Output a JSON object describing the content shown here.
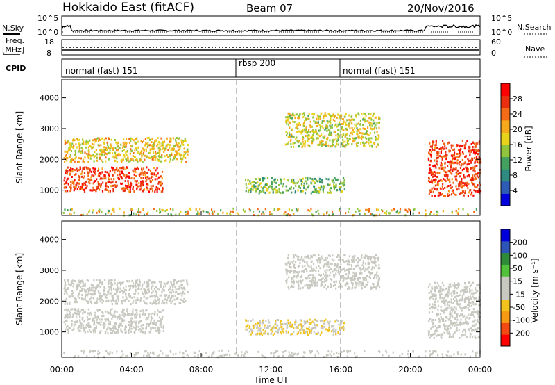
{
  "header": {
    "station": "Hokkaido East (fitACF)",
    "beam": "Beam 07",
    "date": "20/Nov/2016"
  },
  "noise_panel": {
    "left_label": "N.Sky",
    "right_label": "N.Search",
    "ytick_top": "10^5",
    "ytick_bottom": "10^0"
  },
  "freq_panel": {
    "left_label_line1": "Freq.",
    "left_label_line2": "[MHz]",
    "left_ticks": [
      "18",
      "8"
    ],
    "right_label": "Nave",
    "right_ticks": [
      "60",
      "0"
    ]
  },
  "cpid_panel": {
    "label": "CPID",
    "modes": [
      {
        "name": "normal (fast) 151",
        "start_hour": 0,
        "end_hour": 10
      },
      {
        "name": "rbsp 200",
        "start_hour": 10,
        "end_hour": 16
      },
      {
        "name": "normal (fast) 151",
        "start_hour": 16,
        "end_hour": 24
      }
    ]
  },
  "x_axis": {
    "label": "Time UT",
    "ticks": [
      "00:00",
      "04:00",
      "08:00",
      "12:00",
      "16:00",
      "20:00",
      "00:00"
    ]
  },
  "chart_data": [
    {
      "type": "heatmap",
      "title": "",
      "ylabel": "Slant Range [km]",
      "xlabel": "",
      "x_range_hours": [
        0,
        24
      ],
      "ylim": [
        180,
        4600
      ],
      "yticks": [
        1000,
        2000,
        3000,
        4000
      ],
      "colorbar": {
        "label": "Power [dB]",
        "ticks": [
          "28",
          "24",
          "20",
          "16",
          "12",
          "8",
          "4"
        ],
        "colors": [
          "#0000dd",
          "#2d5bb5",
          "#2f8a80",
          "#44a060",
          "#8fc43c",
          "#e7d21c",
          "#f6a91c",
          "#f36a17",
          "#ea2f10",
          "#ff0000"
        ]
      },
      "regions": [
        {
          "name": "dense near-range 00-06 UT",
          "t0": 0.1,
          "t1": 5.8,
          "r0": 950,
          "r1": 1750,
          "value_db": 26
        },
        {
          "name": "scatter 00-07 UT",
          "t0": 0.1,
          "t1": 7.2,
          "r0": 1900,
          "r1": 2700,
          "value_db": 18
        },
        {
          "name": "scatter 13-18 UT",
          "t0": 12.8,
          "t1": 18.2,
          "r0": 2400,
          "r1": 3500,
          "value_db": 16
        },
        {
          "name": "low band 11-16 UT",
          "t0": 10.5,
          "t1": 16.2,
          "r0": 900,
          "r1": 1400,
          "value_db": 12
        },
        {
          "name": "dense near-range 21-24 UT",
          "t0": 21.0,
          "t1": 24.0,
          "r0": 800,
          "r1": 2600,
          "value_db": 26
        }
      ]
    },
    {
      "type": "heatmap",
      "title": "",
      "ylabel": "Slant Range [km]",
      "xlabel": "Time UT",
      "x_range_hours": [
        0,
        24
      ],
      "ylim": [
        180,
        4600
      ],
      "yticks": [
        1000,
        2000,
        3000,
        4000
      ],
      "colorbar": {
        "label": "Velocity [m s⁻¹]",
        "ticks": [
          "200",
          "100",
          "50",
          "15",
          "-15",
          "-50",
          "-100",
          "-200"
        ],
        "colors": [
          "#ff0000",
          "#f24a12",
          "#f69a14",
          "#f2c21d",
          "#c8c8c0",
          "#c8c8c0",
          "#52c23a",
          "#2f8a3a",
          "#2d54b7",
          "#0000dd"
        ]
      },
      "regions": [
        {
          "name": "near-zero 00-06 UT",
          "t0": 0.1,
          "t1": 5.8,
          "r0": 950,
          "r1": 1750,
          "value_ms": 0
        },
        {
          "name": "near-zero 00-07 UT",
          "t0": 0.1,
          "t1": 7.2,
          "r0": 1900,
          "r1": 2700,
          "value_ms": 0
        },
        {
          "name": "near-zero 13-18 UT",
          "t0": 12.8,
          "t1": 18.2,
          "r0": 2400,
          "r1": 3500,
          "value_ms": 0
        },
        {
          "name": "negative 11-16 UT",
          "t0": 10.5,
          "t1": 16.2,
          "r0": 900,
          "r1": 1400,
          "value_ms": -40
        },
        {
          "name": "near-zero 21-24 UT",
          "t0": 21.0,
          "t1": 24.0,
          "r0": 800,
          "r1": 2600,
          "value_ms": 0
        }
      ]
    }
  ]
}
